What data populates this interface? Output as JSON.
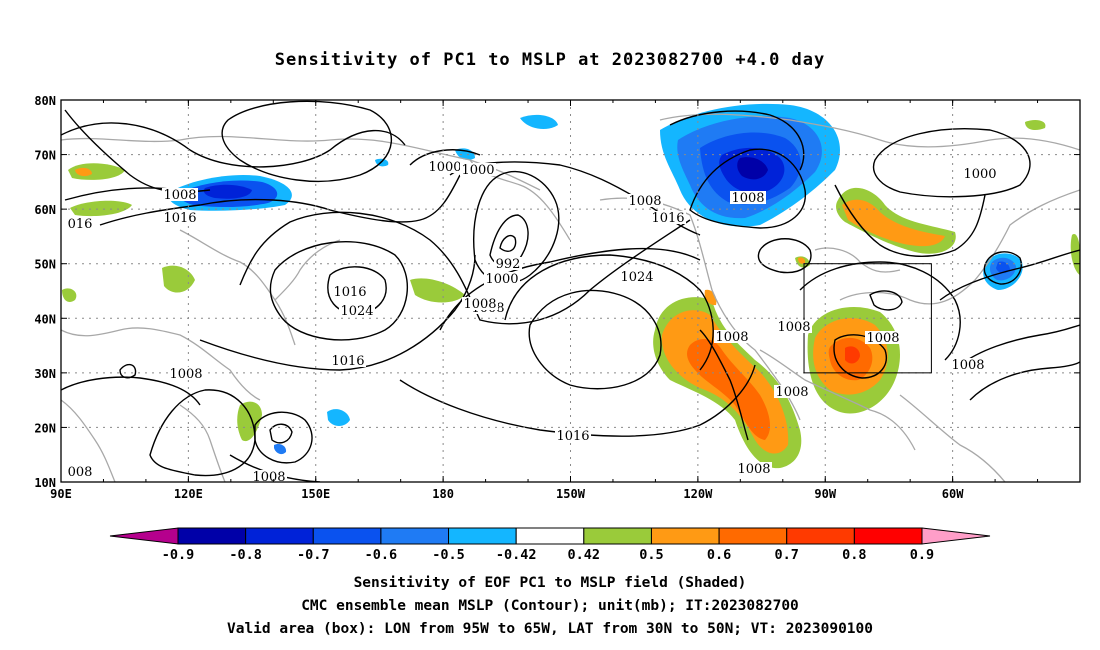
{
  "title": "Sensitivity of PC1 to MSLP at 2023082700 +4.0 day",
  "lat_labels": [
    "80N",
    "70N",
    "60N",
    "50N",
    "40N",
    "30N",
    "20N",
    "10N"
  ],
  "lon_labels": [
    "90E",
    "120E",
    "150E",
    "180",
    "150W",
    "120W",
    "90W",
    "60W"
  ],
  "contour_labels": [
    "016",
    "1008",
    "1016",
    "1000",
    "1000",
    "992",
    "1000",
    "1008",
    "1016",
    "1008",
    "1016",
    "1024",
    "1024",
    "1008",
    "1008",
    "1016",
    "1008",
    "1008",
    "1008",
    "1008",
    "1016",
    "1008",
    "1008",
    "1008",
    "1000",
    "008",
    "1008"
  ],
  "colorbar": {
    "labels": [
      "-0.9",
      "-0.8",
      "-0.7",
      "-0.6",
      "-0.5",
      "-0.42",
      "0.42",
      "0.5",
      "0.6",
      "0.7",
      "0.8",
      "0.9"
    ],
    "colors": [
      "#b5008d",
      "#0000a8",
      "#0022d8",
      "#0a52ef",
      "#1f7bf4",
      "#14b6ff",
      "#ffffff",
      "#9acb3a",
      "#ff9a14",
      "#ff6a00",
      "#ff3a00",
      "#ff0000",
      "#ff9ec8"
    ]
  },
  "valid_box": {
    "lon": [
      -95,
      -65
    ],
    "lat": [
      30,
      50
    ]
  },
  "captions": [
    "Sensitivity of EOF PC1 to MSLP field (Shaded)",
    "CMC ensemble mean MSLP (Contour); unit(mb); IT:2023082700",
    "Valid area (box): LON from 95W to 65W, LAT from 30N to 50N; VT: 2023090100"
  ]
}
